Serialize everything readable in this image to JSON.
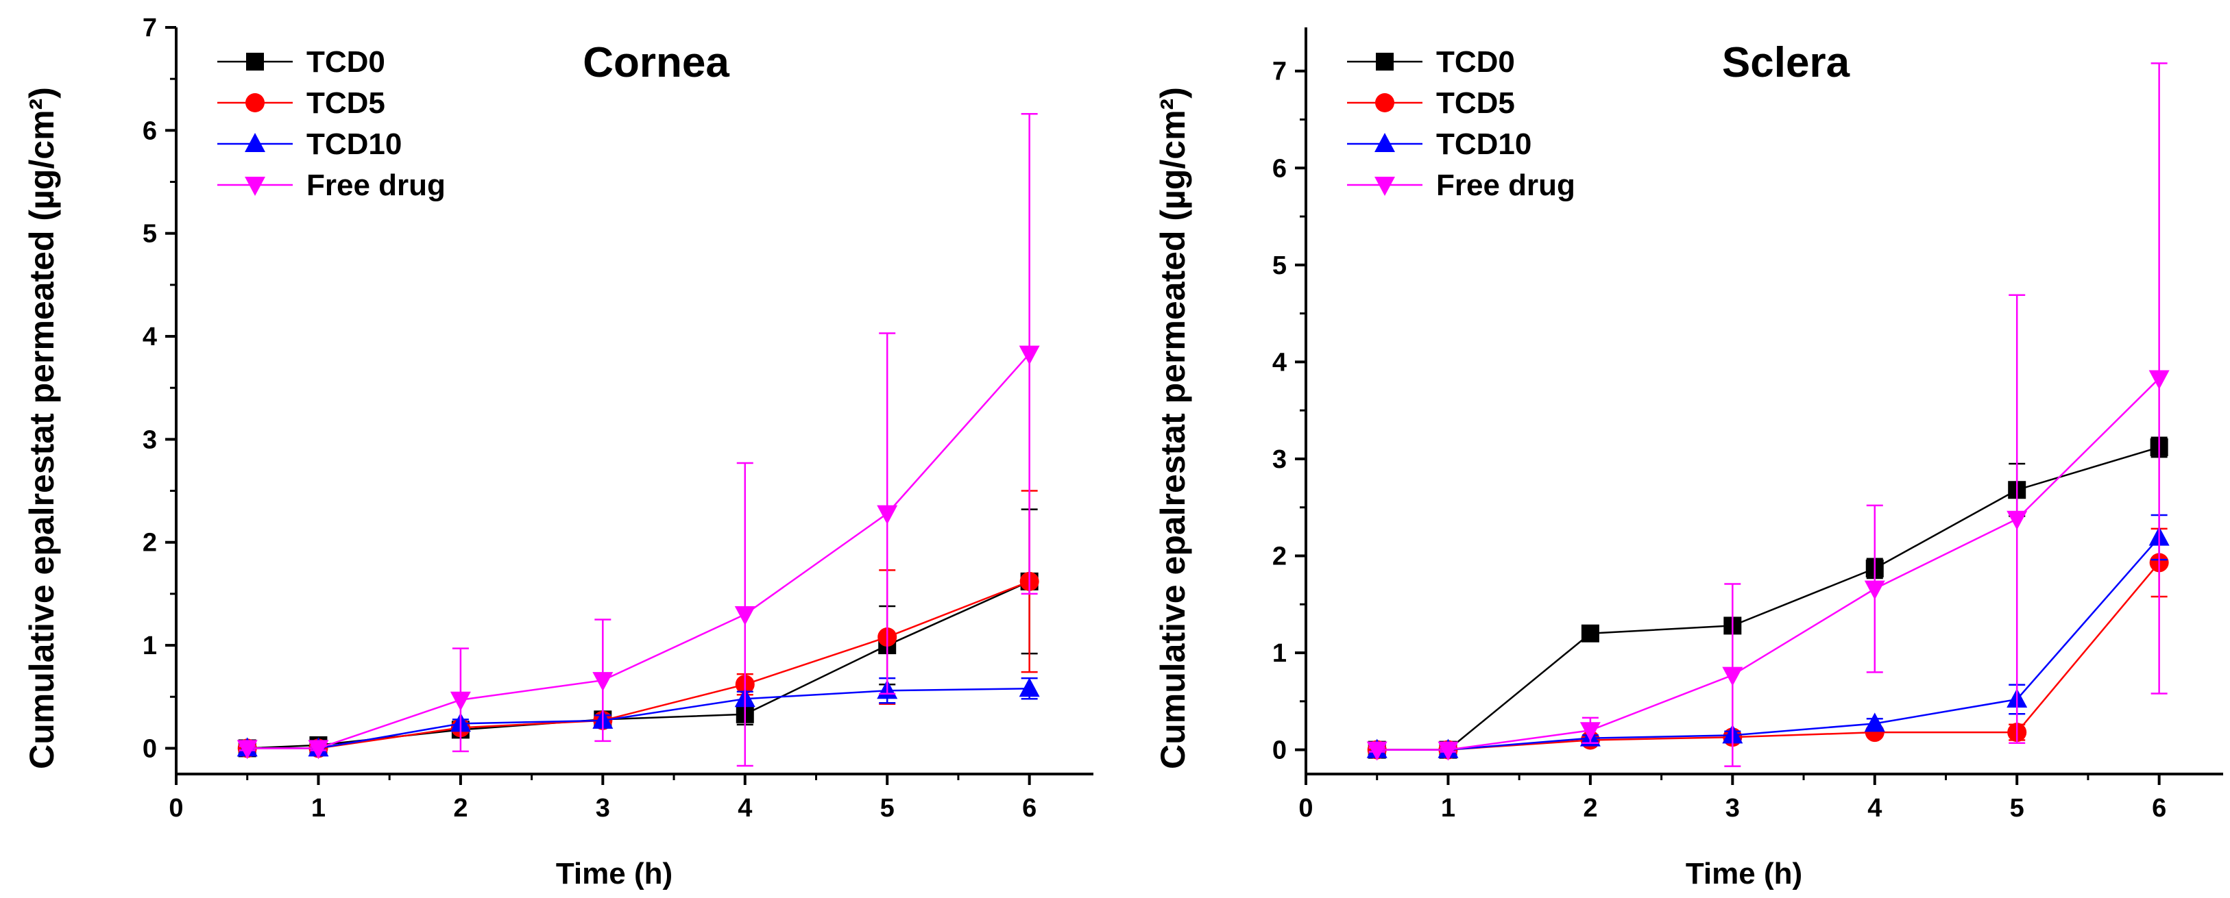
{
  "chart_data": [
    {
      "type": "line",
      "title": "Cornea",
      "xlabel": "Time (h)",
      "ylabel": "Cumulative epalrestat permeated (µg/cm²)",
      "xlim": [
        0,
        6.45
      ],
      "ylim": [
        -0.25,
        7
      ],
      "xticks": [
        0,
        1,
        2,
        3,
        4,
        5,
        6
      ],
      "yticks": [
        0,
        1,
        2,
        3,
        4,
        5,
        6,
        7
      ],
      "legend": "top-left",
      "x": [
        0.5,
        1,
        2,
        3,
        4,
        5,
        6
      ],
      "series": [
        {
          "name": "TCD0",
          "color": "#000000",
          "marker": "square",
          "values": [
            0,
            0.03,
            0.18,
            0.28,
            0.33,
            1.0,
            1.62
          ],
          "errors": [
            0.02,
            0.02,
            0.05,
            0.06,
            0.1,
            0.38,
            0.7
          ]
        },
        {
          "name": "TCD5",
          "color": "#ff0000",
          "marker": "circle",
          "values": [
            0,
            0.0,
            0.2,
            0.27,
            0.62,
            1.08,
            1.62
          ],
          "errors": [
            0.02,
            0.02,
            0.04,
            0.05,
            0.1,
            0.65,
            0.88
          ]
        },
        {
          "name": "TCD10",
          "color": "#0000ff",
          "marker": "triangle-up",
          "values": [
            0,
            0.0,
            0.24,
            0.27,
            0.48,
            0.56,
            0.58
          ],
          "errors": [
            0.02,
            0.02,
            0.04,
            0.05,
            0.07,
            0.12,
            0.1
          ]
        },
        {
          "name": "Free drug",
          "color": "#ff00ff",
          "marker": "triangle-down",
          "values": [
            0,
            0.0,
            0.47,
            0.66,
            1.3,
            2.28,
            3.83
          ],
          "errors": [
            0.02,
            0.02,
            0.5,
            0.59,
            1.47,
            1.75,
            2.33
          ]
        }
      ]
    },
    {
      "type": "line",
      "title": "Sclera",
      "xlabel": "Time (h)",
      "ylabel": "Cumulative epalrestat permeated (µg/cm²)",
      "xlim": [
        0,
        6.45
      ],
      "ylim": [
        -0.25,
        7.45
      ],
      "xticks": [
        0,
        1,
        2,
        3,
        4,
        5,
        6
      ],
      "yticks": [
        0,
        1,
        2,
        3,
        4,
        5,
        6,
        7
      ],
      "legend": "top-left",
      "x": [
        0.5,
        1,
        2,
        3,
        4,
        5,
        6
      ],
      "series": [
        {
          "name": "TCD0",
          "color": "#000000",
          "marker": "square",
          "values": [
            0,
            0.0,
            1.2,
            1.28,
            1.87,
            2.68,
            3.12
          ],
          "errors": [
            0.02,
            0.02,
            0.07,
            0.06,
            0.1,
            0.27,
            0.1
          ]
        },
        {
          "name": "TCD5",
          "color": "#ff0000",
          "marker": "circle",
          "values": [
            0,
            0.0,
            0.1,
            0.13,
            0.18,
            0.18,
            1.93
          ],
          "errors": [
            0.02,
            0.02,
            0.03,
            0.04,
            0.04,
            0.08,
            0.35
          ]
        },
        {
          "name": "TCD10",
          "color": "#0000ff",
          "marker": "triangle-up",
          "values": [
            0,
            0.0,
            0.12,
            0.15,
            0.27,
            0.52,
            2.19
          ],
          "errors": [
            0.02,
            0.02,
            0.03,
            0.04,
            0.05,
            0.15,
            0.23
          ]
        },
        {
          "name": "Free drug",
          "color": "#ff00ff",
          "marker": "triangle-down",
          "values": [
            0,
            0.0,
            0.2,
            0.77,
            1.66,
            2.38,
            3.83
          ],
          "errors": [
            0.02,
            0.02,
            0.13,
            0.94,
            0.86,
            2.31,
            3.25
          ]
        }
      ]
    }
  ]
}
